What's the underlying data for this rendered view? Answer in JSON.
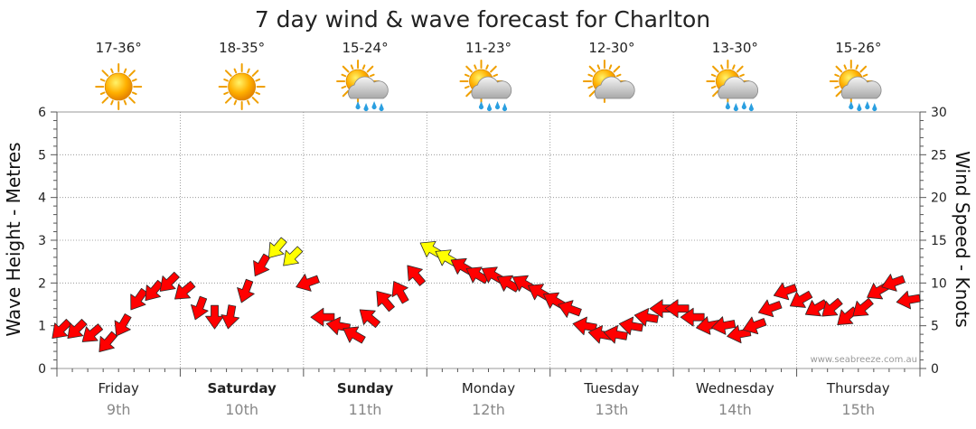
{
  "chart_data": {
    "type": "line",
    "title": "7 day wind & wave forecast for Charlton",
    "ylabel_left": "Wave Height - Metres",
    "ylabel_right": "Wind Speed - Knots",
    "left_ticks": [
      "0",
      "1",
      "2",
      "3",
      "4",
      "5",
      "6"
    ],
    "right_ticks": [
      "0",
      "5",
      "10",
      "15",
      "20",
      "25",
      "30"
    ],
    "ylim_left": [
      0,
      6
    ],
    "ylim_right": [
      0,
      30
    ],
    "days": [
      {
        "name": "Friday",
        "date": "9th",
        "temp": "17-36°",
        "weather": "sunny",
        "bold": false
      },
      {
        "name": "Saturday",
        "date": "10th",
        "temp": "18-35°",
        "weather": "sunny",
        "bold": true
      },
      {
        "name": "Sunday",
        "date": "11th",
        "temp": "15-24°",
        "weather": "sun-cloud-rain",
        "bold": true
      },
      {
        "name": "Monday",
        "date": "12th",
        "temp": "11-23°",
        "weather": "sun-cloud-rain",
        "bold": false
      },
      {
        "name": "Tuesday",
        "date": "13th",
        "temp": "12-30°",
        "weather": "sun-cloud",
        "bold": false
      },
      {
        "name": "Wednesday",
        "date": "14th",
        "temp": "13-30°",
        "weather": "sun-cloud-rain",
        "bold": false
      },
      {
        "name": "Thursday",
        "date": "15th",
        "temp": "15-26°",
        "weather": "sun-cloud-rain",
        "bold": false
      }
    ],
    "wind_series": {
      "name": "Wind speed (knots)",
      "hours": [
        0,
        3,
        6,
        9,
        12,
        15,
        18,
        21,
        24,
        27,
        30,
        33,
        36,
        39,
        42,
        45,
        48,
        51,
        54,
        57,
        60,
        63,
        66,
        69,
        72,
        75,
        78,
        81,
        84,
        87,
        90,
        93,
        96,
        99,
        102,
        105,
        108,
        111,
        114,
        117,
        120,
        123,
        126,
        129,
        132,
        135,
        138,
        141,
        144,
        147,
        150,
        153,
        156,
        159,
        162,
        165
      ],
      "knots": [
        4.5,
        4.5,
        4,
        3,
        5,
        8,
        9,
        10,
        9,
        7,
        6,
        6,
        9,
        12,
        14,
        13,
        10,
        6,
        5,
        4,
        6,
        8,
        9,
        11,
        14,
        13,
        12,
        11,
        11,
        10,
        10,
        9,
        8,
        7,
        5,
        4,
        4,
        5,
        6,
        7,
        7,
        6,
        5,
        5,
        4,
        5,
        7,
        9,
        8,
        7,
        7,
        6,
        7,
        9,
        10,
        8
      ],
      "direction_deg": [
        225,
        225,
        230,
        220,
        210,
        215,
        220,
        225,
        230,
        200,
        180,
        190,
        200,
        210,
        220,
        225,
        250,
        270,
        280,
        300,
        310,
        320,
        330,
        320,
        300,
        300,
        300,
        300,
        300,
        300,
        300,
        300,
        300,
        290,
        280,
        280,
        280,
        280,
        280,
        270,
        270,
        270,
        260,
        260,
        260,
        250,
        250,
        250,
        240,
        240,
        230,
        230,
        230,
        240,
        250,
        260
      ]
    },
    "wave_series": {
      "name": "Wave height (m)",
      "hours": [
        0,
        3,
        6,
        9,
        12,
        15,
        18,
        21,
        24,
        27,
        30,
        33,
        36,
        39,
        42,
        45,
        48,
        51,
        54,
        57,
        60,
        63,
        66,
        69,
        72,
        75,
        78,
        81,
        84,
        87,
        90,
        93,
        96,
        99,
        102,
        105,
        108,
        111,
        114,
        117,
        120,
        123,
        126,
        129,
        132,
        135,
        138,
        141,
        144,
        147,
        150,
        153,
        156,
        159,
        162,
        165
      ],
      "metres": [
        0.9,
        0.9,
        0.8,
        0.6,
        1.0,
        1.6,
        1.8,
        2.0,
        1.8,
        1.4,
        1.2,
        1.2,
        1.8,
        2.4,
        2.8,
        2.6,
        2.0,
        1.2,
        1.0,
        0.8,
        1.2,
        1.6,
        1.8,
        2.2,
        2.8,
        2.6,
        2.4,
        2.2,
        2.2,
        2.0,
        2.0,
        1.8,
        1.6,
        1.4,
        1.0,
        0.8,
        0.8,
        1.0,
        1.2,
        1.4,
        1.4,
        1.2,
        1.0,
        1.0,
        0.8,
        1.0,
        1.4,
        1.8,
        1.6,
        1.4,
        1.4,
        1.2,
        1.4,
        1.8,
        2.0,
        1.6
      ]
    }
  },
  "credit": "www.seabreeze.com.au"
}
